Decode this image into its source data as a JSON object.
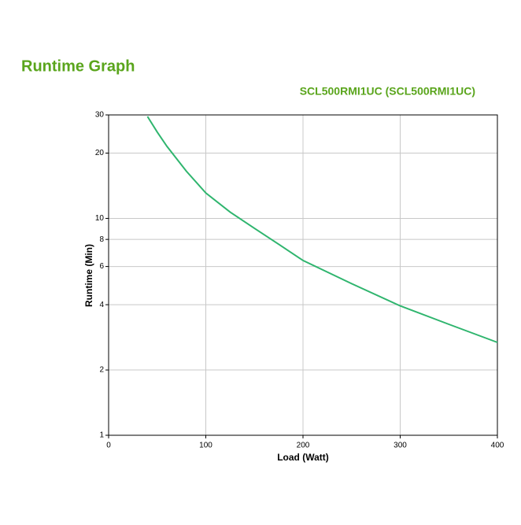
{
  "chart_data": {
    "type": "line",
    "title": "Runtime Graph",
    "subtitle": "SCL500RMI1UC (SCL500RMI1UC)",
    "x_label": "Load (Watt)",
    "y_label": "Runtime (Min)",
    "x": [
      40,
      50,
      60,
      80,
      100,
      125,
      150,
      175,
      200,
      250,
      300,
      350,
      400
    ],
    "series": [
      {
        "color": "#2fb56e",
        "values": [
          29.5,
          25,
          21.5,
          16.5,
          13.1,
          10.7,
          9,
          7.6,
          6.4,
          5,
          3.95,
          3.25,
          2.68
        ]
      }
    ],
    "xlim": [
      0,
      400
    ],
    "xticks": [
      0,
      100,
      200,
      300,
      400
    ],
    "ylim": [
      1,
      30
    ],
    "yticks": [
      1,
      2,
      4,
      6,
      8,
      10,
      20,
      30
    ],
    "y_scale": "log",
    "grid": true
  }
}
